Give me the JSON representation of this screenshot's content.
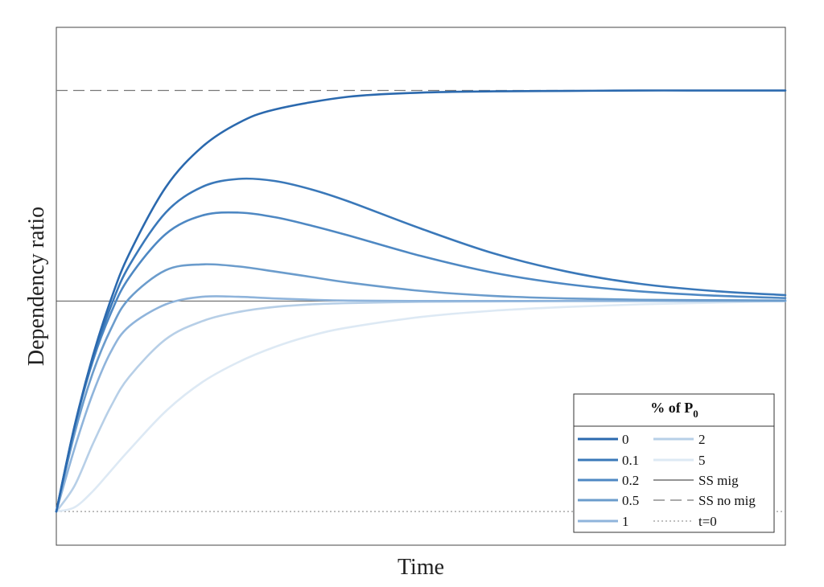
{
  "chart_data": {
    "type": "line",
    "xlabel": "Time",
    "ylabel": "Dependency ratio",
    "x_ticks_shown": false,
    "y_ticks_shown": false,
    "grid": false,
    "xlim": [
      0,
      10
    ],
    "ylim": [
      -0.08,
      1.15
    ],
    "legend": {
      "title_main": "% of P",
      "title_sub": "0",
      "placement": "bottom-right",
      "columns": 2
    },
    "reference_lines": [
      {
        "name": "SS mig",
        "y": 0.5,
        "style": "solid",
        "color": "#555555"
      },
      {
        "name": "SS no mig",
        "y": 1.0,
        "style": "dashed",
        "color": "#777777"
      },
      {
        "name": "t=0",
        "y": 0.0,
        "style": "dotted",
        "color": "#999999"
      }
    ],
    "series": [
      {
        "name": "0",
        "color": "#2b69ae",
        "x": [
          0,
          0.25,
          0.5,
          0.75,
          1,
          1.5,
          2,
          2.5,
          3,
          4,
          5,
          6,
          7,
          8,
          9,
          10
        ],
        "y": [
          0,
          0.203,
          0.369,
          0.504,
          0.612,
          0.77,
          0.866,
          0.923,
          0.955,
          0.985,
          0.995,
          0.998,
          0.999,
          1,
          1,
          1
        ]
      },
      {
        "name": "0.1",
        "color": "#3a78b9",
        "x": [
          0,
          0.25,
          0.5,
          0.75,
          1,
          1.5,
          2,
          2.5,
          3,
          3.5,
          4,
          5,
          6,
          7,
          8,
          9,
          10
        ],
        "y": [
          0,
          0.202,
          0.363,
          0.488,
          0.584,
          0.71,
          0.771,
          0.79,
          0.785,
          0.765,
          0.737,
          0.672,
          0.613,
          0.57,
          0.541,
          0.524,
          0.514
        ]
      },
      {
        "name": "0.2",
        "color": "#4e88c3",
        "x": [
          0,
          0.25,
          0.5,
          0.75,
          1,
          1.5,
          2,
          2.5,
          3,
          3.5,
          4,
          5,
          6,
          7,
          8,
          9,
          10
        ],
        "y": [
          0,
          0.2,
          0.357,
          0.472,
          0.556,
          0.659,
          0.703,
          0.71,
          0.699,
          0.679,
          0.656,
          0.607,
          0.567,
          0.54,
          0.523,
          0.513,
          0.507
        ]
      },
      {
        "name": "0.5",
        "color": "#6b9ccc",
        "x": [
          0,
          0.25,
          0.5,
          0.75,
          1,
          1.5,
          2,
          2.5,
          3,
          3.5,
          4,
          5,
          6,
          7,
          8,
          9,
          10
        ],
        "y": [
          0,
          0.185,
          0.329,
          0.434,
          0.506,
          0.573,
          0.587,
          0.582,
          0.57,
          0.557,
          0.544,
          0.524,
          0.512,
          0.506,
          0.503,
          0.502,
          0.501
        ]
      },
      {
        "name": "1",
        "color": "#8fb4db",
        "x": [
          0,
          0.25,
          0.5,
          0.75,
          1,
          1.5,
          2,
          2.5,
          3,
          3.5,
          4,
          5,
          6,
          7,
          8,
          9,
          10
        ],
        "y": [
          0,
          0.15,
          0.28,
          0.38,
          0.44,
          0.492,
          0.51,
          0.51,
          0.506,
          0.503,
          0.501,
          0.5,
          0.5,
          0.5,
          0.5,
          0.5,
          0.5
        ]
      },
      {
        "name": "2",
        "color": "#b7cfe7",
        "x": [
          0,
          0.25,
          0.5,
          0.75,
          1,
          1.5,
          2,
          2.5,
          3,
          3.5,
          4,
          5,
          6,
          7,
          8,
          9,
          10
        ],
        "y": [
          0,
          0.061,
          0.16,
          0.25,
          0.32,
          0.409,
          0.452,
          0.474,
          0.486,
          0.492,
          0.495,
          0.498,
          0.499,
          0.5,
          0.5,
          0.5,
          0.5
        ]
      },
      {
        "name": "5",
        "color": "#dde9f4",
        "x": [
          0,
          0.25,
          0.5,
          0.75,
          1,
          1.5,
          2,
          2.5,
          3,
          3.5,
          4,
          5,
          6,
          7,
          8,
          9,
          10
        ],
        "y": [
          0,
          0.01,
          0.048,
          0.097,
          0.146,
          0.238,
          0.307,
          0.355,
          0.391,
          0.418,
          0.437,
          0.462,
          0.477,
          0.486,
          0.492,
          0.496,
          0.5
        ]
      }
    ]
  }
}
